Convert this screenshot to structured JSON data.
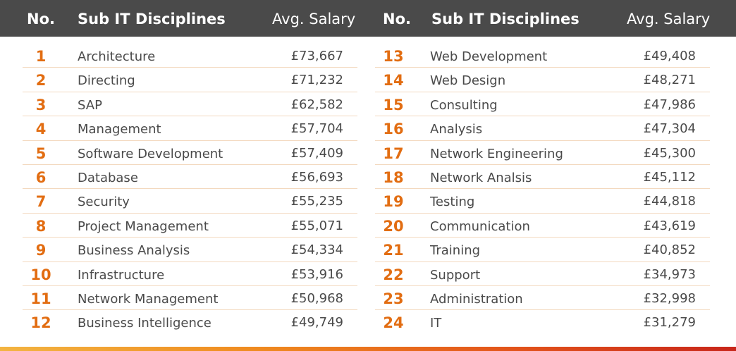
{
  "header": {
    "no_label": "No.",
    "discipline_label": "Sub IT Disciplines",
    "salary_label": "Avg. Salary"
  },
  "left_rows": [
    {
      "no": "1",
      "discipline": "Architecture",
      "salary": "£73,667"
    },
    {
      "no": "2",
      "discipline": "Directing",
      "salary": "£71,232"
    },
    {
      "no": "3",
      "discipline": "SAP",
      "salary": "£62,582"
    },
    {
      "no": "4",
      "discipline": "Management",
      "salary": "£57,704"
    },
    {
      "no": "5",
      "discipline": "Software Development",
      "salary": "£57,409"
    },
    {
      "no": "6",
      "discipline": "Database",
      "salary": "£56,693"
    },
    {
      "no": "7",
      "discipline": "Security",
      "salary": "£55,235"
    },
    {
      "no": "8",
      "discipline": "Project Management",
      "salary": "£55,071"
    },
    {
      "no": "9",
      "discipline": "Business Analysis",
      "salary": "£54,334"
    },
    {
      "no": "10",
      "discipline": "Infrastructure",
      "salary": "£53,916"
    },
    {
      "no": "11",
      "discipline": "Network Management",
      "salary": "£50,968"
    },
    {
      "no": "12",
      "discipline": "Business Intelligence",
      "salary": "£49,749"
    }
  ],
  "right_rows": [
    {
      "no": "13",
      "discipline": "Web Development",
      "salary": "£49,408"
    },
    {
      "no": "14",
      "discipline": "Web Design",
      "salary": "£48,271"
    },
    {
      "no": "15",
      "discipline": "Consulting",
      "salary": "£47,986"
    },
    {
      "no": "16",
      "discipline": "Analysis",
      "salary": "£47,304"
    },
    {
      "no": "17",
      "discipline": "Network Engineering",
      "salary": "£45,300"
    },
    {
      "no": "18",
      "discipline": "Network Analsis",
      "salary": "£45,112"
    },
    {
      "no": "19",
      "discipline": "Testing",
      "salary": "£44,818"
    },
    {
      "no": "20",
      "discipline": "Communication",
      "salary": "£43,619"
    },
    {
      "no": "21",
      "discipline": "Training",
      "salary": "£40,852"
    },
    {
      "no": "22",
      "discipline": "Support",
      "salary": "£34,973"
    },
    {
      "no": "23",
      "discipline": "Administration",
      "salary": "£32,998"
    },
    {
      "no": "24",
      "discipline": "IT",
      "salary": "£31,279"
    }
  ],
  "colors": {
    "header_bg": "#4a4a4a",
    "accent_orange": "#e26d12",
    "text": "#4a4a4a",
    "divider": "#f3d9bf"
  }
}
